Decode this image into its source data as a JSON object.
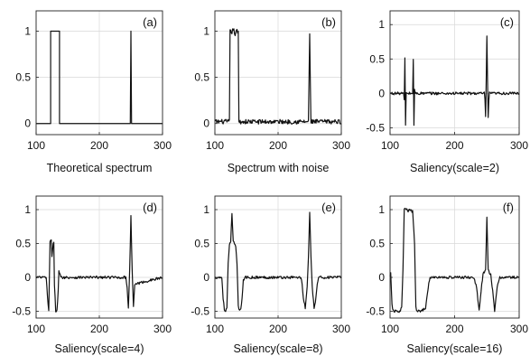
{
  "chart_data": [
    {
      "type": "line",
      "panel_label": "(a)",
      "caption": "Theoretical spectrum",
      "xlim": [
        100,
        300
      ],
      "ylim": [
        -0.12,
        1.22
      ],
      "xticks": [
        100,
        200,
        300
      ],
      "yticks": [
        0,
        0.5,
        1
      ],
      "ytick_labels": [
        "0",
        "0.5",
        "1"
      ],
      "grid": true,
      "noise": 0,
      "x": [
        100,
        123,
        123,
        137,
        137,
        249,
        250,
        251,
        300
      ],
      "y": [
        0,
        0,
        1,
        1,
        0,
        0,
        1,
        0,
        0
      ]
    },
    {
      "type": "line",
      "panel_label": "(b)",
      "caption": "Spectrum with noise",
      "xlim": [
        100,
        300
      ],
      "ylim": [
        -0.12,
        1.22
      ],
      "xticks": [
        100,
        200,
        300
      ],
      "yticks": [
        0,
        0.5,
        1
      ],
      "ytick_labels": [
        "0",
        "0.5",
        "1"
      ],
      "grid": true,
      "noise": 0.025,
      "x": [
        100,
        123,
        124,
        126,
        129,
        132,
        135,
        137,
        138,
        248,
        249,
        250,
        251,
        252,
        300
      ],
      "y": [
        0.02,
        0.02,
        1.0,
        0.98,
        1.02,
        0.97,
        1.0,
        0.98,
        0.02,
        0.02,
        0.5,
        0.95,
        0.45,
        0.02,
        0.02
      ]
    },
    {
      "type": "line",
      "panel_label": "(c)",
      "caption": "Saliency(scale=2)",
      "xlim": [
        100,
        300
      ],
      "ylim": [
        -0.6,
        1.2
      ],
      "xticks": [
        100,
        200,
        300
      ],
      "yticks": [
        -0.5,
        0,
        0.5,
        1
      ],
      "ytick_labels": [
        "-0.5",
        "0",
        "0.5",
        "1"
      ],
      "grid": true,
      "noise": 0.02,
      "x": [
        100,
        121,
        122,
        123,
        124,
        125,
        135,
        136,
        137,
        138,
        139,
        246,
        247,
        248,
        249,
        250,
        251,
        252,
        253,
        254,
        300
      ],
      "y": [
        0,
        0,
        -0.1,
        0.5,
        -0.45,
        0,
        0,
        0.5,
        -0.47,
        0.05,
        0,
        0,
        -0.1,
        -0.33,
        0.2,
        0.82,
        0.2,
        -0.35,
        -0.1,
        0,
        0
      ]
    },
    {
      "type": "line",
      "panel_label": "(d)",
      "caption": "Saliency(scale=4)",
      "xlim": [
        100,
        300
      ],
      "ylim": [
        -0.6,
        1.2
      ],
      "xticks": [
        100,
        200,
        300
      ],
      "yticks": [
        -0.5,
        0,
        0.5,
        1
      ],
      "ytick_labels": [
        "-0.5",
        "0",
        "0.5",
        "1"
      ],
      "grid": true,
      "noise": 0.02,
      "x": [
        100,
        116,
        118,
        120,
        122,
        124,
        125,
        127,
        128,
        129,
        131,
        133,
        135,
        136,
        139,
        242,
        244,
        246,
        248,
        250,
        252,
        254,
        256,
        300
      ],
      "y": [
        0,
        0,
        -0.3,
        -0.5,
        0.52,
        0.55,
        0.3,
        0.48,
        0.5,
        -0.1,
        -0.5,
        -0.47,
        -0.2,
        0.1,
        0,
        0,
        -0.15,
        -0.45,
        0.1,
        0.9,
        0.1,
        -0.45,
        -0.1,
        0
      ]
    },
    {
      "type": "line",
      "panel_label": "(e)",
      "caption": "Saliency(scale=8)",
      "xlim": [
        100,
        300
      ],
      "ylim": [
        -0.6,
        1.2
      ],
      "xticks": [
        100,
        200,
        300
      ],
      "yticks": [
        -0.5,
        0,
        0.5,
        1
      ],
      "ytick_labels": [
        "-0.5",
        "0",
        "0.5",
        "1"
      ],
      "grid": true,
      "noise": 0.02,
      "x": [
        100,
        111,
        113,
        115,
        117,
        119,
        121,
        123,
        125,
        127,
        129,
        131,
        133,
        135,
        137,
        139,
        141,
        143,
        145,
        147,
        236,
        238,
        240,
        243,
        246,
        248,
        250,
        252,
        254,
        257,
        260,
        262,
        264,
        300
      ],
      "y": [
        0,
        0,
        -0.3,
        -0.48,
        -0.5,
        -0.45,
        0.2,
        0.47,
        0.52,
        0.95,
        0.52,
        0.5,
        0.47,
        0.2,
        -0.4,
        -0.5,
        -0.48,
        -0.3,
        -0.05,
        0,
        0,
        -0.1,
        -0.3,
        -0.45,
        -0.15,
        0.3,
        0.95,
        0.3,
        -0.15,
        -0.45,
        -0.3,
        -0.1,
        0,
        0
      ]
    },
    {
      "type": "line",
      "panel_label": "(f)",
      "caption": "Saliency(scale=16)",
      "xlim": [
        100,
        300
      ],
      "ylim": [
        -0.6,
        1.2
      ],
      "xticks": [
        100,
        200,
        300
      ],
      "yticks": [
        -0.5,
        0,
        0.5,
        1
      ],
      "ytick_labels": [
        "-0.5",
        "0",
        "0.5",
        "1"
      ],
      "grid": true,
      "noise": 0.02,
      "x": [
        100,
        101,
        103,
        105,
        115,
        118,
        120,
        122,
        124,
        127,
        131,
        135,
        138,
        140,
        142,
        144,
        147,
        150,
        155,
        160,
        162,
        230,
        234,
        238,
        241,
        244,
        248,
        250,
        252,
        256,
        259,
        262,
        266,
        270,
        300
      ],
      "y": [
        0,
        0.05,
        -0.4,
        -0.5,
        -0.5,
        -0.45,
        0.1,
        1.0,
        1.02,
        0.98,
        0.99,
        0.97,
        0.5,
        -0.45,
        -0.5,
        -0.5,
        -0.5,
        -0.48,
        -0.45,
        -0.1,
        0,
        0,
        -0.15,
        -0.5,
        -0.2,
        0.05,
        0.1,
        0.88,
        0.1,
        0.05,
        -0.2,
        -0.5,
        -0.15,
        0,
        0
      ]
    }
  ]
}
